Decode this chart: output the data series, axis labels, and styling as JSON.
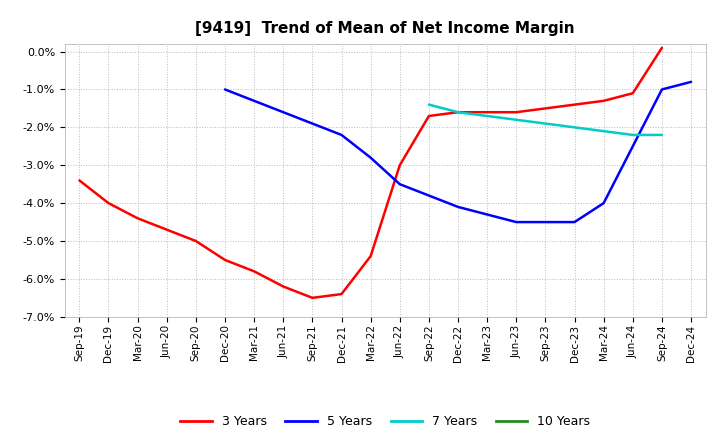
{
  "title": "[9419]  Trend of Mean of Net Income Margin",
  "x_labels": [
    "Sep-19",
    "Dec-19",
    "Mar-20",
    "Jun-20",
    "Sep-20",
    "Dec-20",
    "Mar-21",
    "Jun-21",
    "Sep-21",
    "Dec-21",
    "Mar-22",
    "Jun-22",
    "Sep-22",
    "Dec-22",
    "Mar-23",
    "Jun-23",
    "Sep-23",
    "Dec-23",
    "Mar-24",
    "Jun-24",
    "Sep-24",
    "Dec-24"
  ],
  "ylim": [
    -0.07,
    0.002
  ],
  "yticks": [
    0.0,
    -0.01,
    -0.02,
    -0.03,
    -0.04,
    -0.05,
    -0.06,
    -0.07
  ],
  "series": {
    "3 Years": {
      "color": "#FF0000",
      "values": [
        -0.034,
        -0.04,
        -0.044,
        -0.047,
        -0.05,
        -0.055,
        -0.058,
        -0.062,
        -0.065,
        -0.064,
        -0.054,
        -0.03,
        -0.017,
        -0.016,
        -0.016,
        -0.016,
        -0.015,
        -0.014,
        -0.013,
        -0.011,
        0.001,
        null
      ]
    },
    "5 Years": {
      "color": "#0000FF",
      "values": [
        null,
        null,
        null,
        null,
        null,
        -0.01,
        -0.013,
        -0.016,
        -0.019,
        -0.022,
        -0.028,
        -0.035,
        -0.038,
        -0.041,
        -0.043,
        -0.045,
        -0.045,
        -0.045,
        -0.04,
        -0.025,
        -0.01,
        -0.008
      ]
    },
    "7 Years": {
      "color": "#00CCCC",
      "values": [
        null,
        null,
        null,
        null,
        null,
        null,
        null,
        null,
        null,
        null,
        null,
        null,
        -0.014,
        -0.016,
        -0.017,
        -0.018,
        -0.019,
        -0.02,
        -0.021,
        -0.022,
        -0.022,
        null
      ]
    },
    "10 Years": {
      "color": "#228B22",
      "values": [
        null,
        null,
        null,
        null,
        null,
        null,
        null,
        null,
        null,
        null,
        null,
        null,
        null,
        null,
        null,
        null,
        null,
        null,
        null,
        null,
        null,
        null
      ]
    }
  },
  "background_color": "#FFFFFF",
  "grid_color": "#BBBBBB",
  "legend_labels": [
    "3 Years",
    "5 Years",
    "7 Years",
    "10 Years"
  ],
  "legend_colors": [
    "#FF0000",
    "#0000FF",
    "#00CCCC",
    "#228B22"
  ]
}
